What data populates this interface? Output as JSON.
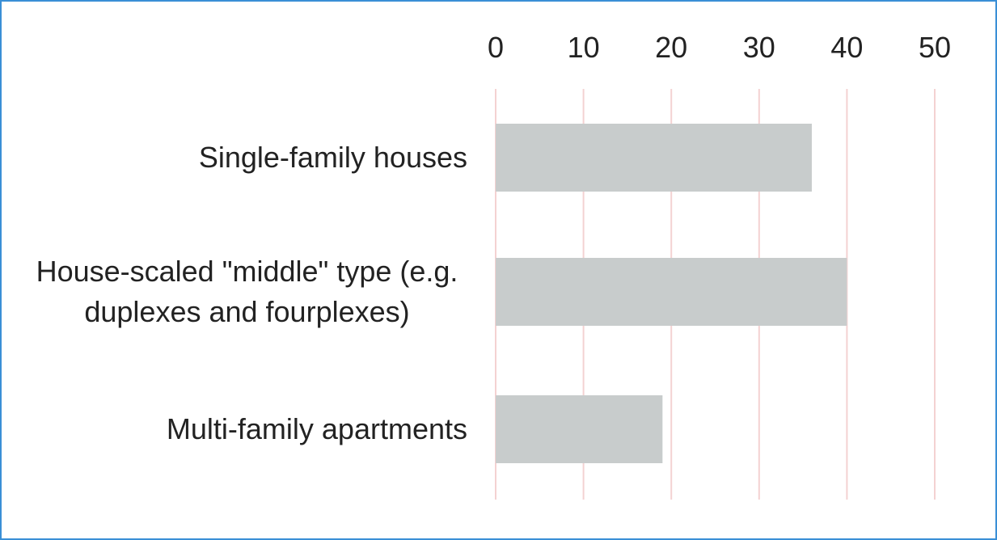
{
  "chart_data": {
    "type": "bar",
    "orientation": "horizontal",
    "categories": [
      "Single-family houses",
      "House-scaled \"middle\" type (e.g. duplexes and fourplexes)",
      "Multi-family apartments"
    ],
    "values": [
      36,
      40,
      19
    ],
    "color": "#c8cccc",
    "xlim": [
      0,
      50
    ],
    "xticks": [
      0,
      10,
      20,
      30,
      40,
      50
    ],
    "grid": true,
    "grid_color": "#f4d2d2"
  }
}
